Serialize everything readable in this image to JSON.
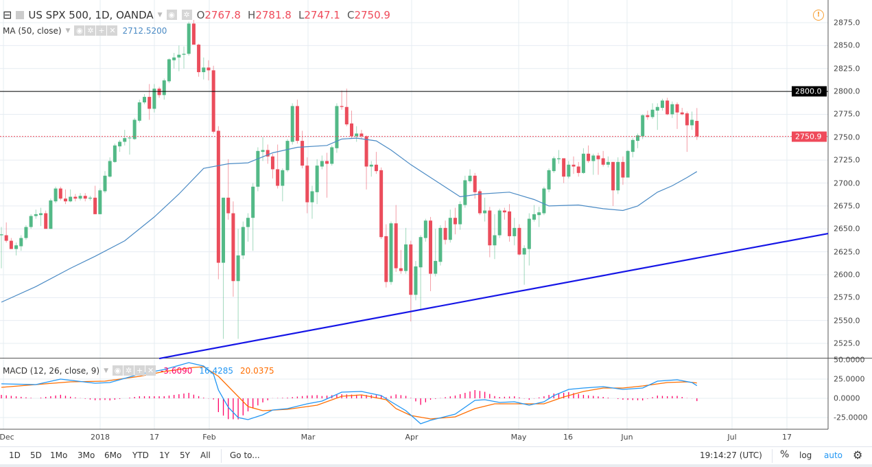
{
  "header": {
    "symbol": "US SPX 500, 1D, OANDA",
    "open_label": "O",
    "open": "2767.8",
    "high_label": "H",
    "high": "2781.8",
    "low_label": "L",
    "low": "2747.1",
    "close_label": "C",
    "close": "2750.9"
  },
  "ma_legend": {
    "label": "MA (50, close)",
    "value": "2712.5200"
  },
  "macd_legend": {
    "label": "MACD (12, 26, close, 9)",
    "hist": "-3.6090",
    "macd": "16.4285",
    "signal": "20.0375"
  },
  "price_axis": [
    "2875.0",
    "2850.0",
    "2825.0",
    "2800.0",
    "2775.0",
    "2750.0",
    "2725.0",
    "2700.0",
    "2675.0",
    "2650.0",
    "2625.0",
    "2600.0",
    "2575.0",
    "2550.0",
    "2525.0"
  ],
  "macd_axis": [
    "50.0000",
    "25.0000",
    "0.0000",
    "-25.0000"
  ],
  "horizontal_line": {
    "value": 2800.0,
    "label": "2800.0",
    "color": "#000000"
  },
  "last_price": {
    "value": 2750.9,
    "label": "2750.9",
    "color": "#ef4a5a"
  },
  "time_axis": [
    "Dec",
    "2018",
    "17",
    "Feb",
    "Mar",
    "Apr",
    "May",
    "16",
    "Jun",
    "Jul",
    "17"
  ],
  "toolbar": {
    "ranges": [
      "1D",
      "5D",
      "1Mo",
      "3Mo",
      "6Mo",
      "YTD",
      "1Y",
      "5Y",
      "All"
    ],
    "goto": "Go to...",
    "clock": "19:14:27 (UTC)",
    "percent": "%",
    "log": "log",
    "auto": "auto"
  },
  "colors": {
    "up": "#53b987",
    "down": "#eb4d5c",
    "ma": "#4a8ac4",
    "trendline": "#1515e6",
    "macd": "#2196f3",
    "signal": "#ff6d00",
    "hist": "#ff0066",
    "accent": "#2196f3"
  },
  "chart_data": {
    "type": "candlestick",
    "ylim": [
      2510,
      2890
    ],
    "grid": true,
    "candles_ohlc": [
      [
        2643,
        2652,
        2607,
        2644
      ],
      [
        2643,
        2657,
        2635,
        2637
      ],
      [
        2637,
        2640,
        2628,
        2628
      ],
      [
        2628,
        2635,
        2621,
        2632
      ],
      [
        2631,
        2643,
        2626,
        2640
      ],
      [
        2640,
        2654,
        2638,
        2652
      ],
      [
        2652,
        2666,
        2650,
        2664
      ],
      [
        2664,
        2671,
        2661,
        2666
      ],
      [
        2665,
        2673,
        2653,
        2667
      ],
      [
        2667,
        2670,
        2650,
        2650
      ],
      [
        2650,
        2683,
        2650,
        2681
      ],
      [
        2680,
        2696,
        2678,
        2694
      ],
      [
        2694,
        2696,
        2681,
        2683
      ],
      [
        2683,
        2693,
        2677,
        2680
      ],
      [
        2680,
        2693,
        2679,
        2685
      ],
      [
        2685,
        2688,
        2680,
        2683
      ],
      [
        2683,
        2689,
        2681,
        2686
      ],
      [
        2686,
        2689,
        2680,
        2683
      ],
      [
        2683,
        2686,
        2681,
        2684
      ],
      [
        2684,
        2697,
        2666,
        2666
      ],
      [
        2666,
        2694,
        2666,
        2692
      ],
      [
        2691,
        2713,
        2689,
        2708
      ],
      [
        2707,
        2728,
        2706,
        2724
      ],
      [
        2723,
        2743,
        2722,
        2741
      ],
      [
        2740,
        2747,
        2734,
        2745
      ],
      [
        2745,
        2758,
        2741,
        2749
      ],
      [
        2749,
        2751,
        2731,
        2749.5
      ],
      [
        2748,
        2771,
        2747,
        2769
      ],
      [
        2768,
        2791,
        2766,
        2788
      ],
      [
        2788,
        2797,
        2786,
        2794
      ],
      [
        2794,
        2808,
        2769,
        2781
      ],
      [
        2781,
        2808,
        2777,
        2803
      ],
      [
        2803,
        2805,
        2793,
        2796
      ],
      [
        2796,
        2814,
        2791,
        2812
      ],
      [
        2811,
        2836,
        2809,
        2835
      ],
      [
        2834,
        2842,
        2825,
        2837
      ],
      [
        2837,
        2850,
        2822,
        2840
      ],
      [
        2840,
        2849,
        2825,
        2841
      ],
      [
        2841,
        2876,
        2839,
        2874
      ],
      [
        2874,
        2878,
        2851,
        2851
      ],
      [
        2851,
        2852,
        2816,
        2821
      ],
      [
        2821,
        2837,
        2813,
        2826
      ],
      [
        2826,
        2834,
        2812,
        2823
      ],
      [
        2823,
        2828,
        2754,
        2756
      ],
      [
        2757,
        2762,
        2595,
        2613
      ],
      [
        2613,
        2684,
        2530,
        2684
      ],
      [
        2684,
        2726,
        2660,
        2667
      ],
      [
        2667,
        2680,
        2576,
        2593
      ],
      [
        2593,
        2650,
        2530,
        2621
      ],
      [
        2621,
        2658,
        2617,
        2652
      ],
      [
        2652,
        2667,
        2636,
        2662
      ],
      [
        2662,
        2700,
        2626,
        2696
      ],
      [
        2696,
        2739,
        2691,
        2735
      ],
      [
        2734,
        2750,
        2724,
        2736
      ],
      [
        2736,
        2742,
        2721,
        2729
      ],
      [
        2729,
        2732,
        2705,
        2715
      ],
      [
        2715,
        2742,
        2694,
        2697
      ],
      [
        2697,
        2716,
        2680,
        2714
      ],
      [
        2714,
        2748,
        2712,
        2746
      ],
      [
        2745,
        2787,
        2742,
        2784
      ],
      [
        2784,
        2791,
        2743,
        2746
      ],
      [
        2746,
        2757,
        2716,
        2719
      ],
      [
        2719,
        2728,
        2667,
        2679
      ],
      [
        2679,
        2697,
        2661,
        2691
      ],
      [
        2690,
        2726,
        2677,
        2719
      ],
      [
        2718,
        2730,
        2715,
        2724
      ],
      [
        2724,
        2733,
        2684,
        2721
      ],
      [
        2721,
        2741,
        2719,
        2739
      ],
      [
        2738,
        2787,
        2733,
        2784
      ],
      [
        2784,
        2801,
        2780,
        2783
      ],
      [
        2783,
        2803,
        2762,
        2764
      ],
      [
        2765,
        2779,
        2749,
        2751
      ],
      [
        2751,
        2762,
        2745,
        2754
      ],
      [
        2754,
        2758,
        2748,
        2751
      ],
      [
        2751,
        2752,
        2693,
        2718
      ],
      [
        2718,
        2724,
        2707,
        2720
      ],
      [
        2720,
        2734,
        2710,
        2713
      ],
      [
        2714,
        2717,
        2639,
        2641
      ],
      [
        2642,
        2655,
        2586,
        2592
      ],
      [
        2592,
        2658,
        2589,
        2656
      ],
      [
        2656,
        2676,
        2603,
        2607
      ],
      [
        2607,
        2627,
        2601,
        2604
      ],
      [
        2604,
        2651,
        2601,
        2633
      ],
      [
        2633,
        2637,
        2549,
        2578
      ],
      [
        2578,
        2615,
        2572,
        2609
      ],
      [
        2608,
        2643,
        2561,
        2641
      ],
      [
        2640,
        2661,
        2636,
        2659
      ],
      [
        2659,
        2663,
        2582,
        2601
      ],
      [
        2601,
        2650,
        2598,
        2615
      ],
      [
        2614,
        2654,
        2610,
        2651
      ],
      [
        2651,
        2659,
        2633,
        2638
      ],
      [
        2638,
        2671,
        2635,
        2662
      ],
      [
        2662,
        2673,
        2644,
        2655
      ],
      [
        2655,
        2680,
        2649,
        2677
      ],
      [
        2676,
        2708,
        2673,
        2703
      ],
      [
        2702,
        2715,
        2700,
        2708
      ],
      [
        2708,
        2711,
        2683,
        2690
      ],
      [
        2691,
        2693,
        2665,
        2667
      ],
      [
        2667,
        2684,
        2658,
        2670
      ],
      [
        2670,
        2674,
        2619,
        2632
      ],
      [
        2632,
        2666,
        2617,
        2643
      ],
      [
        2643,
        2672,
        2640,
        2670
      ],
      [
        2670,
        2673,
        2660,
        2668
      ],
      [
        2669,
        2677,
        2636,
        2642
      ],
      [
        2642,
        2662,
        2632,
        2651
      ],
      [
        2651,
        2655,
        2621,
        2622
      ],
      [
        2622,
        2632,
        2589,
        2629
      ],
      [
        2628,
        2667,
        2610,
        2661
      ],
      [
        2660,
        2676,
        2658,
        2666
      ],
      [
        2665,
        2674,
        2652,
        2668
      ],
      [
        2667,
        2696,
        2665,
        2694
      ],
      [
        2693,
        2716,
        2690,
        2714
      ],
      [
        2713,
        2729,
        2711,
        2727
      ],
      [
        2726,
        2736,
        2721,
        2727
      ],
      [
        2727,
        2727,
        2700,
        2707
      ],
      [
        2707,
        2724,
        2705,
        2720
      ],
      [
        2720,
        2729,
        2710,
        2718
      ],
      [
        2718,
        2723,
        2707,
        2711
      ],
      [
        2711,
        2738,
        2710,
        2732
      ],
      [
        2732,
        2741,
        2722,
        2724
      ],
      [
        2724,
        2732,
        2709,
        2730
      ],
      [
        2730,
        2733,
        2709,
        2726
      ],
      [
        2727,
        2735,
        2718,
        2720
      ],
      [
        2720,
        2729,
        2717,
        2723
      ],
      [
        2723,
        2723,
        2675,
        2692
      ],
      [
        2692,
        2728,
        2688,
        2723
      ],
      [
        2723,
        2729,
        2698,
        2706
      ],
      [
        2706,
        2736,
        2706,
        2735
      ],
      [
        2734,
        2749,
        2728,
        2747
      ],
      [
        2746,
        2754,
        2738,
        2752
      ],
      [
        2751,
        2775,
        2748,
        2774
      ],
      [
        2774,
        2779,
        2769,
        2772
      ],
      [
        2772,
        2787,
        2770,
        2780
      ],
      [
        2779,
        2787,
        2758,
        2783
      ],
      [
        2782,
        2792,
        2779,
        2790
      ],
      [
        2790,
        2793,
        2774,
        2775
      ],
      [
        2775,
        2789,
        2771,
        2786
      ],
      [
        2786,
        2788,
        2759,
        2777
      ],
      [
        2777,
        2782,
        2774,
        2775
      ],
      [
        2776,
        2778,
        2734,
        2763
      ],
      [
        2763,
        2778,
        2758,
        2769
      ],
      [
        2767.8,
        2781.8,
        2747.1,
        2750.9
      ]
    ],
    "ma50": [
      [
        0,
        2570
      ],
      [
        7,
        2587
      ],
      [
        14,
        2607
      ],
      [
        19,
        2620
      ],
      [
        25,
        2637
      ],
      [
        31,
        2663
      ],
      [
        36,
        2688
      ],
      [
        41,
        2716
      ],
      [
        46,
        2721
      ],
      [
        50,
        2722
      ],
      [
        55,
        2733
      ],
      [
        60,
        2739
      ],
      [
        66,
        2741
      ],
      [
        69,
        2748
      ],
      [
        72,
        2749
      ],
      [
        76,
        2746
      ],
      [
        79,
        2736
      ],
      [
        83,
        2720
      ],
      [
        89,
        2699
      ],
      [
        93,
        2685
      ],
      [
        97,
        2688
      ],
      [
        103,
        2690
      ],
      [
        108,
        2682
      ],
      [
        111,
        2675
      ],
      [
        117,
        2676
      ],
      [
        122,
        2672
      ],
      [
        126,
        2670
      ],
      [
        129,
        2675
      ],
      [
        133,
        2690
      ],
      [
        136,
        2697
      ],
      [
        139,
        2706
      ],
      [
        141,
        2712.52
      ]
    ],
    "trendline": [
      [
        32,
        2508.5
      ],
      [
        167.6,
        2644.9
      ]
    ],
    "macd": {
      "ylim": [
        -42,
        50
      ],
      "macd_line": [
        [
          0,
          18.8
        ],
        [
          7,
          17.9
        ],
        [
          12,
          25
        ],
        [
          19,
          19.6
        ],
        [
          22,
          20.5
        ],
        [
          28,
          31.3
        ],
        [
          33,
          37.5
        ],
        [
          38,
          46.4
        ],
        [
          41,
          42
        ],
        [
          43,
          31.3
        ],
        [
          44,
          10.7
        ],
        [
          46,
          -11.6
        ],
        [
          48,
          -25
        ],
        [
          50,
          -27.7
        ],
        [
          53,
          -21.4
        ],
        [
          55,
          -15.2
        ],
        [
          58,
          -13.4
        ],
        [
          62,
          -7.1
        ],
        [
          65,
          -3.6
        ],
        [
          69,
          8
        ],
        [
          73,
          8.9
        ],
        [
          77,
          3.6
        ],
        [
          79,
          -4.5
        ],
        [
          82,
          -16.1
        ],
        [
          85,
          -33
        ],
        [
          87,
          -28.6
        ],
        [
          92,
          -20.5
        ],
        [
          96,
          -2.7
        ],
        [
          98,
          -1.8
        ],
        [
          101,
          -5.4
        ],
        [
          104,
          -4.5
        ],
        [
          107,
          -8.9
        ],
        [
          110,
          -4.5
        ],
        [
          112,
          3.6
        ],
        [
          115,
          11.6
        ],
        [
          118,
          13.4
        ],
        [
          122,
          15.2
        ],
        [
          126,
          11.6
        ],
        [
          130,
          13.4
        ],
        [
          133,
          22.3
        ],
        [
          137,
          24.1
        ],
        [
          140,
          20.5
        ],
        [
          141,
          16.43
        ]
      ],
      "signal_line": [
        [
          0,
          14.3
        ],
        [
          7,
          17.9
        ],
        [
          14,
          21.4
        ],
        [
          21,
          22.3
        ],
        [
          28,
          28.6
        ],
        [
          33,
          34.8
        ],
        [
          39,
          40.2
        ],
        [
          41,
          41.1
        ],
        [
          44,
          28.6
        ],
        [
          47,
          8.9
        ],
        [
          50,
          -10.7
        ],
        [
          53,
          -16.1
        ],
        [
          58,
          -14.3
        ],
        [
          64,
          -8.9
        ],
        [
          69,
          2.7
        ],
        [
          73,
          4.5
        ],
        [
          78,
          -1.8
        ],
        [
          80,
          -13.4
        ],
        [
          83,
          -22.3
        ],
        [
          87,
          -26.8
        ],
        [
          92,
          -24.1
        ],
        [
          96,
          -13.4
        ],
        [
          100,
          -7.1
        ],
        [
          105,
          -7.1
        ],
        [
          110,
          -7.1
        ],
        [
          114,
          1.8
        ],
        [
          118,
          8.9
        ],
        [
          122,
          13.4
        ],
        [
          126,
          13.4
        ],
        [
          130,
          16.1
        ],
        [
          135,
          20.5
        ],
        [
          139,
          21.4
        ],
        [
          141,
          20.04
        ]
      ]
    }
  }
}
